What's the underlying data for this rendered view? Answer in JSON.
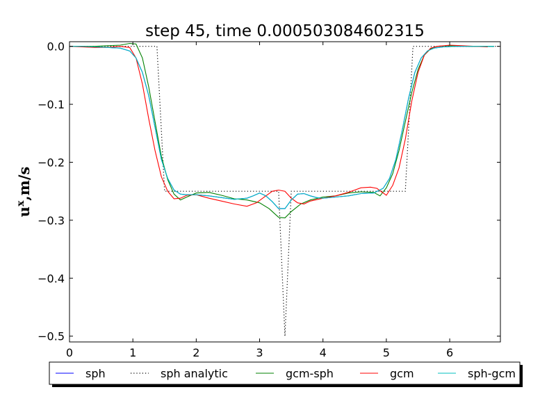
{
  "chart_data": {
    "type": "line",
    "title": "step 45, time 0.000503084602315",
    "xlabel": "",
    "ylabel": "u",
    "ylabel_sup": "x",
    "ylabel_unit": ",m/s",
    "xlim": [
      0,
      6.8
    ],
    "ylim": [
      -0.51,
      0.008
    ],
    "xticks": [
      0,
      1,
      2,
      3,
      4,
      5,
      6
    ],
    "xtick_labels": [
      "0",
      "1",
      "2",
      "3",
      "4",
      "5",
      "6"
    ],
    "yticks": [
      0.0,
      -0.1,
      -0.2,
      -0.3,
      -0.4,
      -0.5
    ],
    "ytick_labels": [
      "0.0",
      "−0.1",
      "−0.2",
      "−0.3",
      "−0.4",
      "−0.5"
    ],
    "grid": false,
    "legend_position": "bottom",
    "series": [
      {
        "name": "sph",
        "color": "#0000ff",
        "style": "solid",
        "x": [
          0,
          0.2,
          0.4,
          0.6,
          0.8,
          0.95,
          1.05,
          1.15,
          1.25,
          1.35,
          1.45,
          1.55,
          1.65,
          1.75,
          1.85,
          2.0,
          2.2,
          2.4,
          2.6,
          2.8,
          2.9,
          3.0,
          3.1,
          3.2,
          3.3,
          3.4,
          3.5,
          3.6,
          3.7,
          3.8,
          3.9,
          4.0,
          4.2,
          4.4,
          4.6,
          4.8,
          4.95,
          5.05,
          5.15,
          5.25,
          5.35,
          5.45,
          5.55,
          5.65,
          5.75,
          5.9,
          6.1,
          6.3,
          6.5,
          6.7
        ],
        "y": [
          0.0,
          0.0,
          -0.001,
          -0.002,
          -0.003,
          -0.008,
          -0.02,
          -0.045,
          -0.085,
          -0.14,
          -0.195,
          -0.228,
          -0.248,
          -0.255,
          -0.256,
          -0.256,
          -0.258,
          -0.261,
          -0.264,
          -0.262,
          -0.258,
          -0.253,
          -0.258,
          -0.268,
          -0.28,
          -0.28,
          -0.265,
          -0.255,
          -0.254,
          -0.258,
          -0.261,
          -0.262,
          -0.26,
          -0.258,
          -0.254,
          -0.253,
          -0.245,
          -0.228,
          -0.195,
          -0.145,
          -0.09,
          -0.045,
          -0.02,
          -0.008,
          -0.003,
          -0.001,
          0.0,
          0.0,
          0.0,
          0.0
        ]
      },
      {
        "name": "sph analytic",
        "color": "#000000",
        "style": "dotted",
        "x": [
          0,
          0.95,
          1.0,
          1.38,
          1.5,
          3.3,
          3.4,
          3.5,
          5.3,
          5.42,
          5.8,
          6.8
        ],
        "y": [
          0.0,
          0.0,
          0.0,
          0.0,
          -0.25,
          -0.25,
          -0.5,
          -0.25,
          -0.25,
          0.0,
          0.0,
          0.0
        ]
      },
      {
        "name": "gcm-sph",
        "color": "#008000",
        "style": "solid",
        "x": [
          0,
          0.2,
          0.4,
          0.6,
          0.8,
          0.95,
          1.05,
          1.15,
          1.25,
          1.35,
          1.45,
          1.55,
          1.65,
          1.75,
          1.85,
          2.0,
          2.2,
          2.4,
          2.6,
          2.8,
          3.0,
          3.15,
          3.3,
          3.4,
          3.5,
          3.65,
          3.8,
          4.0,
          4.2,
          4.4,
          4.6,
          4.8,
          4.9,
          5.0,
          5.1,
          5.2,
          5.3,
          5.4,
          5.5,
          5.6,
          5.7,
          5.8,
          5.95,
          6.1,
          6.3,
          6.5,
          6.7
        ],
        "y": [
          0.0,
          0.0,
          0.0,
          0.001,
          0.002,
          0.005,
          0.004,
          -0.02,
          -0.07,
          -0.13,
          -0.19,
          -0.23,
          -0.255,
          -0.265,
          -0.26,
          -0.253,
          -0.252,
          -0.257,
          -0.263,
          -0.265,
          -0.27,
          -0.28,
          -0.295,
          -0.296,
          -0.285,
          -0.272,
          -0.265,
          -0.26,
          -0.258,
          -0.253,
          -0.251,
          -0.252,
          -0.258,
          -0.244,
          -0.22,
          -0.18,
          -0.13,
          -0.08,
          -0.04,
          -0.015,
          -0.004,
          0.0,
          0.001,
          0.001,
          0.0,
          0.0,
          0.0
        ]
      },
      {
        "name": "gcm",
        "color": "#ff0000",
        "style": "solid",
        "x": [
          0,
          0.2,
          0.4,
          0.6,
          0.8,
          0.95,
          1.05,
          1.15,
          1.25,
          1.35,
          1.45,
          1.55,
          1.65,
          1.75,
          1.85,
          2.0,
          2.2,
          2.4,
          2.6,
          2.8,
          2.95,
          3.1,
          3.2,
          3.3,
          3.4,
          3.5,
          3.6,
          3.7,
          3.8,
          4.0,
          4.2,
          4.4,
          4.6,
          4.75,
          4.85,
          5.0,
          5.1,
          5.2,
          5.3,
          5.4,
          5.5,
          5.6,
          5.7,
          5.8,
          6.0,
          6.2,
          6.4,
          6.6
        ],
        "y": [
          0.0,
          -0.001,
          -0.002,
          -0.002,
          0.0,
          -0.002,
          -0.02,
          -0.065,
          -0.125,
          -0.18,
          -0.225,
          -0.25,
          -0.263,
          -0.262,
          -0.257,
          -0.256,
          -0.262,
          -0.267,
          -0.272,
          -0.276,
          -0.27,
          -0.258,
          -0.25,
          -0.248,
          -0.25,
          -0.262,
          -0.27,
          -0.272,
          -0.267,
          -0.262,
          -0.258,
          -0.252,
          -0.244,
          -0.243,
          -0.245,
          -0.257,
          -0.24,
          -0.21,
          -0.16,
          -0.095,
          -0.045,
          -0.015,
          -0.003,
          0.0,
          0.002,
          0.001,
          0.0,
          -0.001
        ]
      },
      {
        "name": "sph-gcm",
        "color": "#00bfbf",
        "style": "solid",
        "x": [
          0,
          0.2,
          0.4,
          0.6,
          0.8,
          0.95,
          1.05,
          1.15,
          1.25,
          1.35,
          1.45,
          1.55,
          1.65,
          1.75,
          1.85,
          2.0,
          2.2,
          2.4,
          2.6,
          2.8,
          2.9,
          3.0,
          3.1,
          3.2,
          3.3,
          3.4,
          3.5,
          3.6,
          3.7,
          3.8,
          3.9,
          4.0,
          4.2,
          4.4,
          4.6,
          4.8,
          4.95,
          5.05,
          5.15,
          5.25,
          5.35,
          5.45,
          5.55,
          5.65,
          5.75,
          5.9,
          6.1,
          6.3,
          6.5,
          6.7
        ],
        "y": [
          0.0,
          0.0,
          -0.001,
          -0.002,
          -0.003,
          -0.008,
          -0.02,
          -0.045,
          -0.085,
          -0.14,
          -0.195,
          -0.228,
          -0.248,
          -0.255,
          -0.256,
          -0.256,
          -0.258,
          -0.261,
          -0.264,
          -0.262,
          -0.258,
          -0.253,
          -0.258,
          -0.268,
          -0.28,
          -0.28,
          -0.265,
          -0.255,
          -0.254,
          -0.258,
          -0.261,
          -0.262,
          -0.26,
          -0.258,
          -0.254,
          -0.253,
          -0.245,
          -0.228,
          -0.195,
          -0.145,
          -0.09,
          -0.045,
          -0.02,
          -0.008,
          -0.003,
          -0.001,
          0.0,
          0.0,
          0.0,
          0.0
        ]
      }
    ]
  }
}
